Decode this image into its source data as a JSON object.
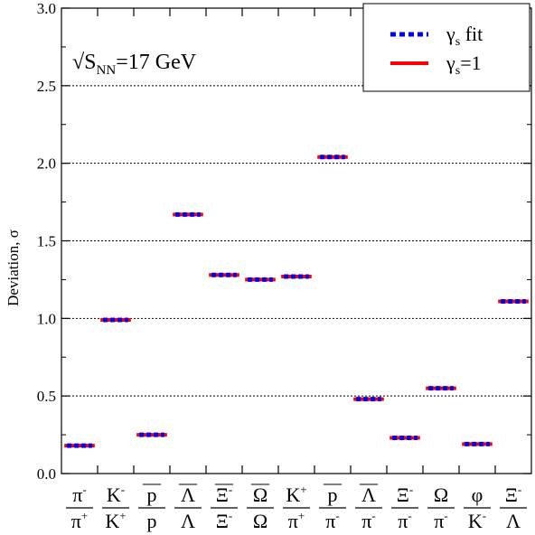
{
  "chart_data": {
    "type": "scatter",
    "annotation": {
      "root": "√",
      "base": "S",
      "sub": "NN",
      "rest": "=17 GeV"
    },
    "ylabel": "Deviation, σ",
    "ylim": [
      0.0,
      3.0
    ],
    "y_ticks": [
      "0.0",
      "0.5",
      "1.0",
      "1.5",
      "2.0",
      "2.5",
      "3.0"
    ],
    "grid": "horizontal dotted lines at 0.5, 1.0, 1.5, 2.0, 2.5",
    "legend_position": "top-right",
    "legend": [
      {
        "key": "gs_fit",
        "greek": "γ",
        "sub": "s",
        "text": " fit",
        "color": "#0000ee",
        "style": "dotted"
      },
      {
        "key": "gs_one",
        "greek": "γ",
        "sub": "s",
        "text": "=1",
        "color": "#ff0000",
        "style": "solid"
      }
    ],
    "categories": [
      {
        "num": "π",
        "num_sup": "-",
        "num_bar": false,
        "den": "π",
        "den_sup": "+",
        "den_bar": false
      },
      {
        "num": "K",
        "num_sup": "-",
        "num_bar": false,
        "den": "K",
        "den_sup": "+",
        "den_bar": false
      },
      {
        "num": "p",
        "num_sup": "",
        "num_bar": true,
        "den": "p",
        "den_sup": "",
        "den_bar": false
      },
      {
        "num": "Λ",
        "num_sup": "",
        "num_bar": true,
        "den": "Λ",
        "den_sup": "",
        "den_bar": false
      },
      {
        "num": "Ξ",
        "num_sup": "-",
        "num_bar": true,
        "den": "Ξ",
        "den_sup": "-",
        "den_bar": false
      },
      {
        "num": "Ω",
        "num_sup": "",
        "num_bar": true,
        "den": "Ω",
        "den_sup": "",
        "den_bar": false
      },
      {
        "num": "K",
        "num_sup": "+",
        "num_bar": false,
        "den": "π",
        "den_sup": "+",
        "den_bar": false
      },
      {
        "num": "p",
        "num_sup": "",
        "num_bar": true,
        "den": "π",
        "den_sup": "-",
        "den_bar": false
      },
      {
        "num": "Λ",
        "num_sup": "",
        "num_bar": true,
        "den": "π",
        "den_sup": "-",
        "den_bar": false
      },
      {
        "num": "Ξ",
        "num_sup": "-",
        "num_bar": false,
        "den": "π",
        "den_sup": "-",
        "den_bar": false
      },
      {
        "num": "Ω",
        "num_sup": "",
        "num_bar": false,
        "den": "π",
        "den_sup": "-",
        "den_bar": false
      },
      {
        "num": "φ",
        "num_sup": "",
        "num_bar": false,
        "den": "K",
        "den_sup": "-",
        "den_bar": false
      },
      {
        "num": "Ξ",
        "num_sup": "-",
        "num_bar": false,
        "den": "Λ",
        "den_sup": "",
        "den_bar": false
      }
    ],
    "series": [
      {
        "name": "γs fit",
        "color": "#0000ee",
        "values": [
          0.18,
          0.99,
          0.25,
          1.67,
          1.28,
          1.25,
          1.27,
          2.04,
          0.48,
          0.23,
          0.55,
          0.19,
          1.11
        ]
      },
      {
        "name": "γs=1",
        "color": "#ff0000",
        "values": [
          0.18,
          0.99,
          0.25,
          1.67,
          1.28,
          1.25,
          1.27,
          2.04,
          0.48,
          0.23,
          0.55,
          0.19,
          1.11
        ]
      }
    ]
  }
}
